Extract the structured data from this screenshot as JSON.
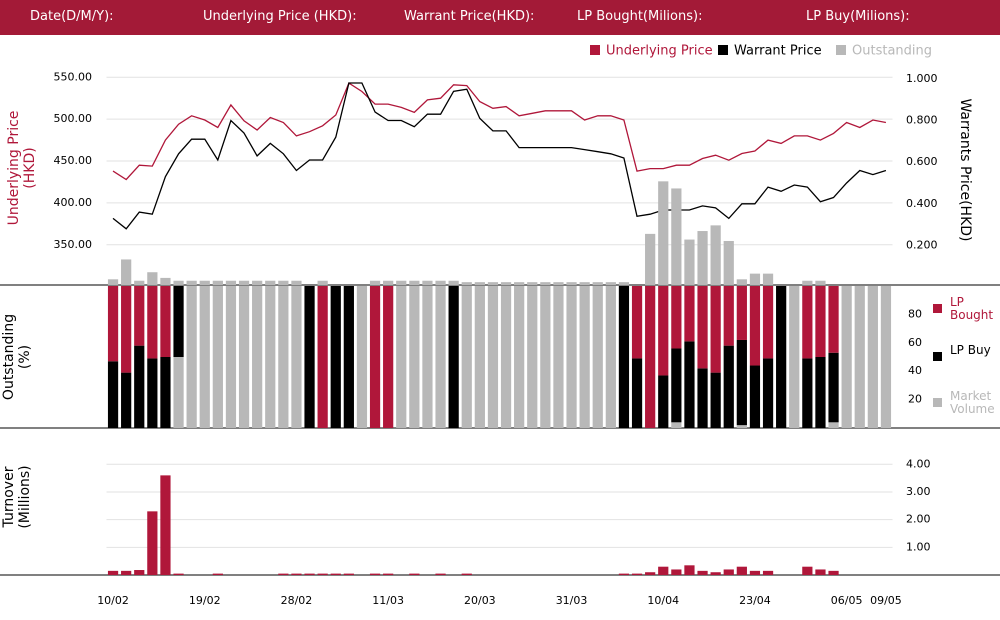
{
  "header": {
    "labels": [
      "Date(D/M/Y):",
      "Underlying Price (HKD):",
      "Warrant Price(HKD):",
      "LP Bought(Milions):",
      "LP Buy(Milions):"
    ]
  },
  "chart_data": [
    {
      "type": "line",
      "ylabel": "Underlying Price (HKD)",
      "y2label": "Warrants Price(HKD)",
      "ylim": [
        302,
        573
      ],
      "yticks": [
        {
          "value": 350,
          "label": "350.00"
        },
        {
          "value": 400,
          "label": "400.00"
        },
        {
          "value": 450,
          "label": "450.00"
        },
        {
          "value": 500,
          "label": "500.00"
        },
        {
          "value": 550,
          "label": "550.00"
        }
      ],
      "y2lim": [
        0.01,
        1.1
      ],
      "y2ticks": [
        {
          "value": 0.2,
          "label": "0.200"
        },
        {
          "value": 0.4,
          "label": "0.400"
        },
        {
          "value": 0.6,
          "label": "0.600"
        },
        {
          "value": 0.8,
          "label": "0.800"
        },
        {
          "value": 1.0,
          "label": "1.000"
        }
      ],
      "grid": true,
      "series": [
        {
          "name": "Underlying Price",
          "color": "#b0173a",
          "values": [
            438,
            428,
            445,
            444,
            475,
            494,
            504,
            499,
            490,
            517,
            498,
            487,
            502,
            496,
            480,
            485,
            492,
            505,
            543,
            533,
            518,
            518,
            514,
            508,
            523,
            525,
            541,
            540,
            521,
            513,
            515,
            504,
            507,
            510,
            510,
            510,
            499,
            504,
            504,
            499,
            438,
            441,
            441,
            445,
            445,
            453,
            457,
            451,
            459,
            462,
            475,
            471,
            480,
            480,
            475,
            483,
            496,
            490,
            499,
            496
          ]
        },
        {
          "name": "Warrant Price",
          "color": "#000000",
          "axis": "y2",
          "values": [
            0.33,
            0.28,
            0.36,
            0.35,
            0.53,
            0.64,
            0.71,
            0.71,
            0.61,
            0.8,
            0.74,
            0.63,
            0.69,
            0.64,
            0.56,
            0.61,
            0.61,
            0.72,
            0.98,
            0.98,
            0.84,
            0.8,
            0.8,
            0.77,
            0.83,
            0.83,
            0.94,
            0.95,
            0.81,
            0.75,
            0.75,
            0.67,
            0.67,
            0.67,
            0.67,
            0.67,
            0.66,
            0.65,
            0.64,
            0.62,
            0.34,
            0.35,
            0.37,
            0.37,
            0.37,
            0.39,
            0.38,
            0.33,
            0.4,
            0.4,
            0.48,
            0.46,
            0.49,
            0.48,
            0.41,
            0.43,
            0.5,
            0.56,
            0.54,
            0.56
          ]
        },
        {
          "name": "Outstanding",
          "color": "#b8b8b8",
          "type": "bar",
          "values": [
            4,
            18,
            3,
            9,
            5,
            3,
            3,
            3,
            3,
            3,
            3,
            3,
            3,
            3,
            3,
            null,
            3,
            null,
            null,
            null,
            3,
            3,
            3,
            3,
            3,
            3,
            3,
            2,
            2,
            2,
            2,
            2,
            2,
            2,
            2,
            2,
            2,
            2,
            2,
            2,
            null,
            36,
            73,
            68,
            32,
            38,
            42,
            31,
            4,
            8,
            8,
            null,
            null,
            3,
            3,
            null,
            null,
            null,
            null,
            null
          ]
        }
      ]
    },
    {
      "type": "stacked_bar",
      "ylabel": "Outstanding (%)",
      "ylim": [
        0,
        100
      ],
      "yticks": [
        20,
        40,
        60,
        80
      ],
      "series": [
        {
          "name": "LP Bought",
          "color": "#b0173a",
          "values": [
            53,
            61,
            42,
            51,
            50,
            0,
            0,
            0,
            0,
            0,
            0,
            0,
            0,
            0,
            0,
            0,
            100,
            0,
            0,
            0,
            100,
            100,
            0,
            0,
            0,
            0,
            0,
            0,
            0,
            0,
            0,
            0,
            0,
            0,
            0,
            0,
            0,
            0,
            0,
            0,
            51,
            100,
            63,
            44,
            39,
            58,
            61,
            42,
            38,
            56,
            51,
            0,
            0,
            51,
            50,
            47,
            0,
            0,
            0,
            0
          ]
        },
        {
          "name": "LP Buy",
          "color": "#000000",
          "values": [
            47,
            39,
            58,
            49,
            50,
            50,
            0,
            0,
            0,
            0,
            0,
            0,
            0,
            0,
            0,
            100,
            0,
            100,
            100,
            0,
            0,
            0,
            0,
            0,
            0,
            0,
            100,
            0,
            0,
            0,
            0,
            0,
            0,
            0,
            0,
            0,
            0,
            0,
            0,
            100,
            49,
            0,
            37,
            52,
            61,
            42,
            39,
            58,
            60,
            44,
            49,
            100,
            0,
            49,
            50,
            49,
            0,
            0,
            0,
            0
          ]
        },
        {
          "name": "Market Volume",
          "color": "#b8b8b8",
          "values": [
            0,
            0,
            0,
            0,
            0,
            50,
            100,
            100,
            100,
            100,
            100,
            100,
            100,
            100,
            100,
            0,
            0,
            0,
            0,
            100,
            0,
            0,
            100,
            100,
            100,
            100,
            0,
            100,
            100,
            100,
            100,
            100,
            100,
            100,
            100,
            100,
            100,
            100,
            100,
            0,
            0,
            0,
            0,
            4,
            0,
            0,
            0,
            0,
            2,
            0,
            0,
            0,
            100,
            0,
            0,
            4,
            100,
            100,
            100,
            100
          ]
        }
      ]
    },
    {
      "type": "bar",
      "ylabel": "Turnover (Millions)",
      "categories": [
        "10/02",
        null,
        null,
        null,
        null,
        null,
        null,
        "19/02",
        null,
        null,
        null,
        null,
        null,
        null,
        "28/02",
        null,
        null,
        null,
        null,
        null,
        null,
        "11/03",
        null,
        null,
        null,
        null,
        null,
        null,
        "20/03",
        null,
        null,
        null,
        null,
        null,
        null,
        "31/03",
        null,
        null,
        null,
        null,
        null,
        null,
        "10/04",
        null,
        null,
        null,
        null,
        null,
        null,
        "23/04",
        null,
        null,
        null,
        null,
        null,
        null,
        "06/05",
        null,
        null,
        "09/05"
      ],
      "values": [
        0.15,
        0.15,
        0.18,
        2.3,
        3.6,
        0.05,
        0,
        0,
        0.05,
        0,
        0,
        0,
        0,
        0.05,
        0.05,
        0.05,
        0.05,
        0.05,
        0.05,
        0,
        0.05,
        0.05,
        0,
        0.05,
        0,
        0.05,
        0,
        0.05,
        0,
        0,
        0,
        0,
        0,
        0,
        0,
        0,
        0,
        0,
        0,
        0.05,
        0.05,
        0.1,
        0.3,
        0.2,
        0.35,
        0.15,
        0.1,
        0.2,
        0.3,
        0.15,
        0.15,
        0,
        0,
        0.3,
        0.2,
        0.15,
        0,
        0,
        0,
        0
      ],
      "color": "#b0173a",
      "ylim": [
        0,
        4.3
      ],
      "yticks": [
        {
          "value": 1,
          "label": "1.00"
        },
        {
          "value": 2,
          "label": "2.00"
        },
        {
          "value": 3,
          "label": "3.00"
        },
        {
          "value": 4,
          "label": "4.00"
        }
      ],
      "grid": true
    }
  ]
}
